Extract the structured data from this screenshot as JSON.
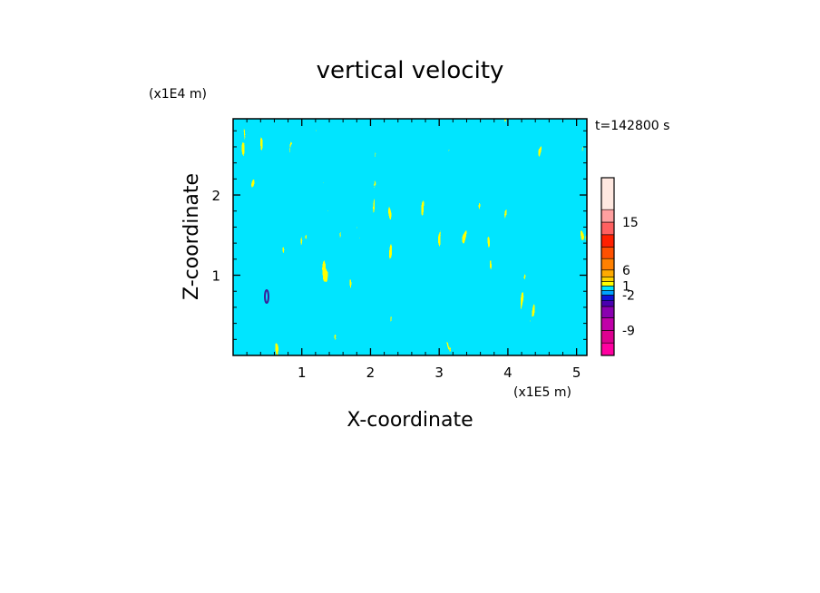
{
  "chart_data": {
    "type": "heatmap",
    "title": "vertical velocity",
    "xlabel": "X-coordinate",
    "ylabel": "Z-coordinate",
    "x_unit": "(x1E5 m)",
    "y_unit": "(x1E4 m)",
    "time_label": "t=142800 s",
    "xlim": [
      0,
      5.15
    ],
    "ylim": [
      0,
      2.95
    ],
    "x_ticks": [
      "1",
      "2",
      "3",
      "4",
      "5"
    ],
    "x_tick_values": [
      1,
      2,
      3,
      4,
      5
    ],
    "y_ticks": [
      "1",
      "2"
    ],
    "y_tick_values": [
      1,
      2
    ],
    "field_colors": {
      "positive": "#ffff00",
      "negative": "#00e5ff",
      "low_contour": "#3a1f9a"
    },
    "colorbar": {
      "bands": [
        "#ff00a0",
        "#dd0090",
        "#c000a8",
        "#8a00b0",
        "#4a00b0",
        "#1010d8",
        "#00a0ff",
        "#00e5ff",
        "#ffff00",
        "#ffd400",
        "#ffaa00",
        "#ff8000",
        "#ff5000",
        "#ff2000",
        "#ff6060",
        "#ffa0a0",
        "#ffe8e0"
      ],
      "tick_labels": [
        "-9",
        "-2",
        "1",
        "6",
        "15"
      ],
      "tick_values": [
        -9,
        -2,
        1,
        6,
        15
      ]
    }
  }
}
